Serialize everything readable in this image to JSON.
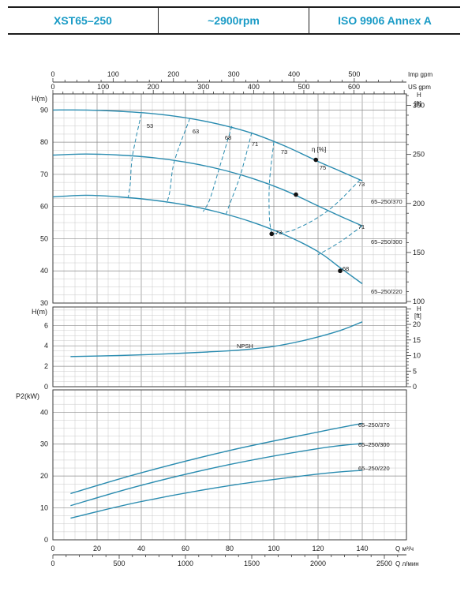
{
  "header": {
    "model": "XST65–250",
    "speed": "~2900rpm",
    "standard": "ISO 9906   Annex A"
  },
  "colors": {
    "curve": "#2a8cb0",
    "header_text": "#1a9bc6",
    "grid_major": "#8a8a8a",
    "grid_minor": "#c8c8c8"
  },
  "axes": {
    "imp_gpm": {
      "unit": "Imp gpm",
      "ticks": [
        "0",
        "100",
        "200",
        "300",
        "400",
        "500"
      ]
    },
    "us_gpm": {
      "unit": "US gpm",
      "ticks": [
        "0",
        "100",
        "200",
        "300",
        "400",
        "500",
        "600"
      ]
    },
    "q_m3h": {
      "unit": "Q  м³/ч",
      "ticks": [
        "0",
        "20",
        "40",
        "60",
        "80",
        "100",
        "120",
        "140"
      ]
    },
    "q_lmin": {
      "unit": "Q  л/мин",
      "ticks": [
        "0",
        "500",
        "1000",
        "1500",
        "2000",
        "2500"
      ]
    },
    "head_m": {
      "label": "H(m)",
      "ticks": [
        "30",
        "40",
        "50",
        "60",
        "70",
        "80",
        "90"
      ]
    },
    "head_ft": {
      "label_h": "H",
      "label_ft": "[ft]",
      "ticks": [
        "100",
        "150",
        "200",
        "250",
        "300"
      ]
    },
    "npsh_m": {
      "label": "H(m)",
      "ticks": [
        "0",
        "2",
        "4",
        "6"
      ]
    },
    "npsh_ft": {
      "label_h": "H",
      "label_ft": "[ft]",
      "ticks": [
        "0",
        "5",
        "10",
        "15",
        "20"
      ]
    },
    "power": {
      "label": "P2(kW)",
      "ticks": [
        "0",
        "10",
        "20",
        "30",
        "40"
      ]
    }
  },
  "chart_data": [
    {
      "type": "line",
      "panel": "head",
      "xlabel": "Q  м³/ч",
      "ylabel": "H(m)",
      "xlim": [
        0,
        160
      ],
      "ylim": [
        30,
        95
      ],
      "eta_label": "η [%]",
      "series": [
        {
          "name": "65–250/370",
          "x": [
            0,
            15,
            30,
            45,
            60,
            75,
            90,
            105,
            120,
            130,
            140
          ],
          "y": [
            90,
            90,
            89.6,
            88.9,
            87.6,
            85.6,
            82.8,
            78.8,
            74.0,
            71.0,
            68.0
          ]
        },
        {
          "name": "65–250/300",
          "x": [
            0,
            15,
            30,
            45,
            60,
            75,
            90,
            105,
            120,
            130,
            140
          ],
          "y": [
            76,
            76.3,
            76,
            75.2,
            73.8,
            71.7,
            68.8,
            65,
            60.2,
            57,
            54
          ]
        },
        {
          "name": "65–250/220",
          "x": [
            0,
            15,
            30,
            45,
            60,
            75,
            90,
            105,
            120,
            130,
            140
          ],
          "y": [
            63,
            63.5,
            63,
            62,
            60.5,
            58.2,
            55.2,
            51.2,
            46,
            41,
            36
          ]
        }
      ],
      "duty_points": [
        {
          "x": 119,
          "y": 74.5
        },
        {
          "x": 110,
          "y": 63.7
        },
        {
          "x": 99,
          "y": 51.5
        },
        {
          "x": 130,
          "y": 40
        }
      ],
      "efficiency": [
        {
          "label": "53",
          "x": [
            40,
            36,
            35,
            34
          ],
          "y": [
            88.8,
            75.6,
            67,
            62.7
          ]
        },
        {
          "label": "63",
          "x": [
            62,
            55,
            53,
            51.5
          ],
          "y": [
            87.4,
            74.1,
            65,
            60.9
          ]
        },
        {
          "label": "68",
          "x": [
            81,
            75,
            71,
            68
          ],
          "y": [
            85.0,
            71.2,
            62.2,
            58.4
          ]
        },
        {
          "label": "71",
          "x": [
            90,
            85,
            80,
            78
          ],
          "y": [
            83.0,
            70.1,
            60.7,
            56.9
          ]
        },
        {
          "label": "73",
          "x": [
            100,
            98,
            98,
            99
          ],
          "y": [
            80.1,
            67.3,
            56.5,
            51.5
          ]
        },
        {
          "label": "75",
          "x": [
            119
          ],
          "y": [
            74.5
          ]
        },
        {
          "label": "73",
          "x": [
            139,
            125,
            110,
            100
          ],
          "y": [
            68.3,
            59,
            53,
            51.5
          ]
        },
        {
          "label": "71",
          "x": [
            140,
            130,
            120
          ],
          "y": [
            54,
            49,
            45
          ]
        },
        {
          "label": "68",
          "x": [
            130
          ],
          "y": [
            40
          ]
        }
      ],
      "eff_label_73_left": "73"
    },
    {
      "type": "line",
      "panel": "npsh",
      "ylabel": "H(m)",
      "xlim": [
        0,
        160
      ],
      "ylim": [
        0,
        7.8
      ],
      "series": [
        {
          "name": "NPSH",
          "x": [
            8,
            30,
            50,
            70,
            85,
            100,
            115,
            130,
            140
          ],
          "y": [
            2.95,
            3.05,
            3.2,
            3.4,
            3.6,
            3.95,
            4.6,
            5.5,
            6.35
          ]
        }
      ]
    },
    {
      "type": "line",
      "panel": "power",
      "ylabel": "P2(kW)",
      "xlim": [
        0,
        160
      ],
      "ylim": [
        0,
        47
      ],
      "series": [
        {
          "name": "65–250/370",
          "x": [
            8,
            40,
            80,
            120,
            140
          ],
          "y": [
            14.5,
            21,
            28,
            33.8,
            36.5
          ]
        },
        {
          "name": "65–250/300",
          "x": [
            8,
            40,
            80,
            120,
            140
          ],
          "y": [
            10.7,
            17.1,
            23.6,
            28.6,
            30.2
          ]
        },
        {
          "name": "65–250/220",
          "x": [
            8,
            40,
            80,
            120,
            140
          ],
          "y": [
            6.8,
            12,
            17,
            20.6,
            21.8
          ]
        }
      ]
    }
  ]
}
